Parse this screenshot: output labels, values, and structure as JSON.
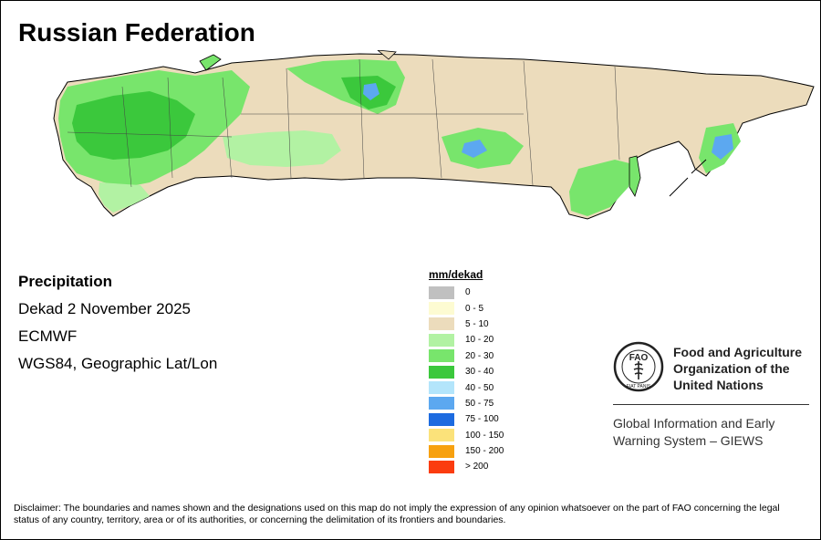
{
  "title": "Russian Federation",
  "info": {
    "variable": "Precipitation",
    "period": "Dekad 2 November 2025",
    "source": "ECMWF",
    "projection": "WGS84, Geographic Lat/Lon"
  },
  "legend": {
    "unit": "mm/dekad",
    "classes": [
      {
        "label": "0",
        "color": "#c0c0c0"
      },
      {
        "label": "0 - 5",
        "color": "#fdfbd2"
      },
      {
        "label": "5 - 10",
        "color": "#ecdcbc"
      },
      {
        "label": "10 - 20",
        "color": "#b2f2a3"
      },
      {
        "label": "20 - 30",
        "color": "#78e56c"
      },
      {
        "label": "30 - 40",
        "color": "#3bc83c"
      },
      {
        "label": "40 - 50",
        "color": "#b3e5fb"
      },
      {
        "label": "50 - 75",
        "color": "#5ca8f0"
      },
      {
        "label": "75 - 100",
        "color": "#1d6be0"
      },
      {
        "label": "100 - 150",
        "color": "#fbe27a"
      },
      {
        "label": "150 - 200",
        "color": "#f7a10f"
      },
      {
        "label": "> 200",
        "color": "#fb3c10"
      }
    ]
  },
  "logo": {
    "icon": "fao-emblem-icon",
    "letters": "FAO",
    "motto": "FIAT PANIS",
    "org_line1": "Food and Agriculture",
    "org_line2": "Organization of the",
    "org_line3": "United Nations"
  },
  "giews": {
    "line1": "Global Information and Early",
    "line2": "Warning System – GIEWS"
  },
  "disclaimer": "Disclaimer: The boundaries and names shown and the designations used on this map do not imply the expression of any opinion whatsoever on the part of FAO concerning the legal status of any country, territory, area or of its authorities, or concerning the delimitation of its frontiers and boundaries."
}
